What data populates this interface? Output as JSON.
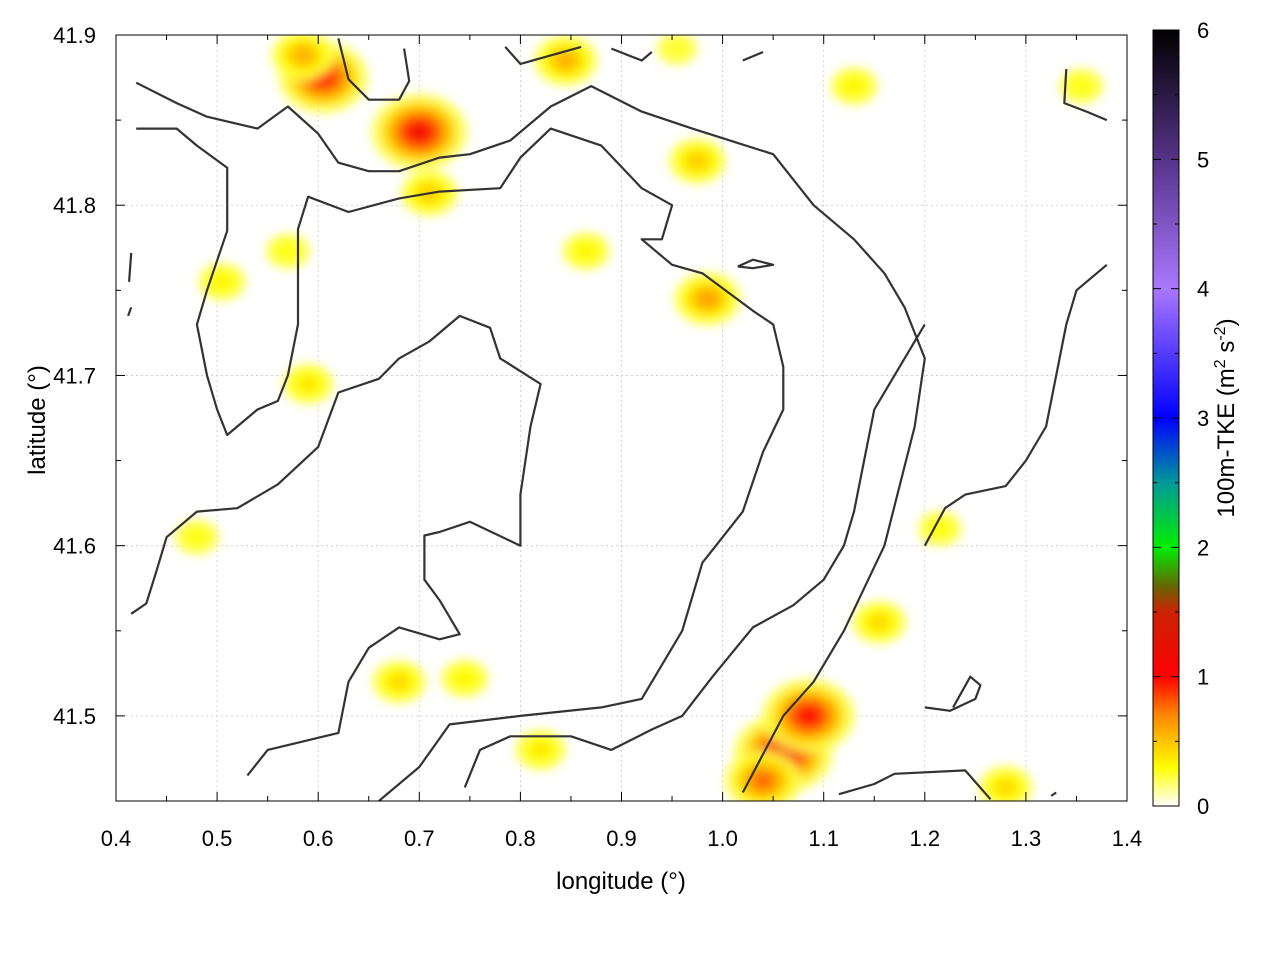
{
  "chart_data": {
    "type": "heatmap",
    "title": "",
    "xlabel": "longitude (°)",
    "ylabel": "latitude (°)",
    "xlim": [
      0.4,
      1.4
    ],
    "ylim": [
      41.45,
      41.9
    ],
    "x_ticks": [
      "0.4",
      "0.5",
      "0.6",
      "0.7",
      "0.8",
      "0.9",
      "1.0",
      "1.1",
      "1.2",
      "1.3",
      "1.4"
    ],
    "y_ticks": [
      "41.5",
      "41.6",
      "41.7",
      "41.8",
      "41.9"
    ],
    "grid": true,
    "colorbar": {
      "label": "100m-TKE (m² s⁻²)",
      "label_main": "100m-TKE (m",
      "label_sup1": "2",
      "label_mid": " s",
      "label_sup2": "-2",
      "label_end": ")",
      "range": [
        0,
        6
      ],
      "ticks": [
        "0",
        "1",
        "2",
        "3",
        "4",
        "5",
        "6"
      ],
      "colormap": [
        [
          0.0,
          "#ffffff"
        ],
        [
          0.3,
          "#ffff00"
        ],
        [
          0.7,
          "#ff8800"
        ],
        [
          1.0,
          "#ff0000"
        ],
        [
          1.5,
          "#cc2200"
        ],
        [
          1.7,
          "#666600"
        ],
        [
          2.0,
          "#00ee00"
        ],
        [
          2.5,
          "#009999"
        ],
        [
          3.0,
          "#0000ff"
        ],
        [
          4.0,
          "#aa77ff"
        ],
        [
          5.0,
          "#553388"
        ],
        [
          6.0,
          "#000000"
        ]
      ]
    },
    "hotspots": [
      {
        "lon": 0.7,
        "lat": 41.843,
        "tke": 1.1
      },
      {
        "lon": 0.605,
        "lat": 41.875,
        "tke": 1.0
      },
      {
        "lon": 0.585,
        "lat": 41.888,
        "tke": 0.6
      },
      {
        "lon": 0.845,
        "lat": 41.885,
        "tke": 0.6
      },
      {
        "lon": 0.71,
        "lat": 41.807,
        "tke": 0.5
      },
      {
        "lon": 0.975,
        "lat": 41.826,
        "tke": 0.5
      },
      {
        "lon": 0.985,
        "lat": 41.745,
        "tke": 0.65
      },
      {
        "lon": 0.59,
        "lat": 41.695,
        "tke": 0.4
      },
      {
        "lon": 0.505,
        "lat": 41.755,
        "tke": 0.35
      },
      {
        "lon": 0.68,
        "lat": 41.52,
        "tke": 0.45
      },
      {
        "lon": 0.745,
        "lat": 41.522,
        "tke": 0.35
      },
      {
        "lon": 0.82,
        "lat": 41.48,
        "tke": 0.4
      },
      {
        "lon": 1.06,
        "lat": 41.478,
        "tke": 1.15
      },
      {
        "lon": 1.085,
        "lat": 41.5,
        "tke": 1.05
      },
      {
        "lon": 1.04,
        "lat": 41.462,
        "tke": 0.8
      },
      {
        "lon": 1.155,
        "lat": 41.555,
        "tke": 0.45
      },
      {
        "lon": 1.28,
        "lat": 41.458,
        "tke": 0.45
      },
      {
        "lon": 0.57,
        "lat": 41.773,
        "tke": 0.3
      },
      {
        "lon": 0.955,
        "lat": 41.892,
        "tke": 0.25
      },
      {
        "lon": 1.13,
        "lat": 41.87,
        "tke": 0.35
      },
      {
        "lon": 1.355,
        "lat": 41.87,
        "tke": 0.3
      },
      {
        "lon": 0.865,
        "lat": 41.773,
        "tke": 0.35
      },
      {
        "lon": 0.48,
        "lat": 41.605,
        "tke": 0.3
      },
      {
        "lon": 1.215,
        "lat": 41.61,
        "tke": 0.3
      }
    ],
    "contours": [
      [
        [
          0.42,
          41.872
        ],
        [
          0.46,
          41.86
        ],
        [
          0.49,
          41.852
        ],
        [
          0.54,
          41.845
        ],
        [
          0.57,
          41.858
        ],
        [
          0.6,
          41.842
        ],
        [
          0.62,
          41.825
        ],
        [
          0.65,
          41.82
        ],
        [
          0.68,
          41.82
        ],
        [
          0.72,
          41.828
        ],
        [
          0.75,
          41.83
        ],
        [
          0.79,
          41.838
        ],
        [
          0.83,
          41.858
        ],
        [
          0.87,
          41.87
        ],
        [
          0.92,
          41.855
        ],
        [
          0.97,
          41.845
        ],
        [
          1.05,
          41.83
        ],
        [
          1.09,
          41.8
        ],
        [
          1.13,
          41.78
        ],
        [
          1.16,
          41.76
        ],
        [
          1.18,
          41.74
        ],
        [
          1.2,
          41.71
        ],
        [
          1.19,
          41.67
        ],
        [
          1.16,
          41.6
        ],
        [
          1.12,
          41.55
        ],
        [
          1.09,
          41.52
        ],
        [
          1.06,
          41.5
        ],
        [
          1.02,
          41.455
        ]
      ],
      [
        [
          0.42,
          41.845
        ],
        [
          0.46,
          41.845
        ],
        [
          0.48,
          41.835
        ],
        [
          0.51,
          41.822
        ],
        [
          0.51,
          41.785
        ],
        [
          0.49,
          41.75
        ],
        [
          0.48,
          41.73
        ],
        [
          0.49,
          41.7
        ],
        [
          0.5,
          41.68
        ],
        [
          0.51,
          41.665
        ],
        [
          0.54,
          41.68
        ],
        [
          0.56,
          41.685
        ],
        [
          0.57,
          41.7
        ],
        [
          0.58,
          41.73
        ],
        [
          0.58,
          41.786
        ],
        [
          0.59,
          41.805
        ],
        [
          0.63,
          41.796
        ],
        [
          0.68,
          41.804
        ],
        [
          0.72,
          41.808
        ],
        [
          0.78,
          41.81
        ],
        [
          0.8,
          41.828
        ],
        [
          0.83,
          41.845
        ],
        [
          0.88,
          41.835
        ],
        [
          0.92,
          41.81
        ],
        [
          0.95,
          41.8
        ],
        [
          0.94,
          41.78
        ],
        [
          0.92,
          41.78
        ],
        [
          0.95,
          41.765
        ],
        [
          0.98,
          41.76
        ],
        [
          1.03,
          41.738
        ],
        [
          1.05,
          41.73
        ],
        [
          1.06,
          41.705
        ],
        [
          1.06,
          41.68
        ],
        [
          1.04,
          41.655
        ],
        [
          1.02,
          41.62
        ],
        [
          1.0,
          41.605
        ],
        [
          0.98,
          41.59
        ],
        [
          0.96,
          41.55
        ],
        [
          0.92,
          41.51
        ],
        [
          0.88,
          41.505
        ],
        [
          0.8,
          41.5
        ],
        [
          0.73,
          41.495
        ],
        [
          0.7,
          41.47
        ],
        [
          0.66,
          41.45
        ]
      ],
      [
        [
          0.415,
          41.56
        ],
        [
          0.43,
          41.566
        ],
        [
          0.44,
          41.585
        ],
        [
          0.45,
          41.605
        ],
        [
          0.48,
          41.62
        ],
        [
          0.52,
          41.622
        ],
        [
          0.56,
          41.636
        ],
        [
          0.6,
          41.658
        ],
        [
          0.62,
          41.69
        ],
        [
          0.66,
          41.698
        ],
        [
          0.68,
          41.71
        ],
        [
          0.71,
          41.72
        ],
        [
          0.74,
          41.735
        ],
        [
          0.77,
          41.728
        ],
        [
          0.78,
          41.71
        ],
        [
          0.82,
          41.695
        ],
        [
          0.81,
          41.67
        ],
        [
          0.8,
          41.63
        ],
        [
          0.8,
          41.6
        ],
        [
          0.75,
          41.614
        ],
        [
          0.72,
          41.608
        ],
        [
          0.705,
          41.606
        ],
        [
          0.705,
          41.58
        ],
        [
          0.72,
          41.568
        ],
        [
          0.74,
          41.548
        ],
        [
          0.72,
          41.545
        ],
        [
          0.68,
          41.552
        ],
        [
          0.65,
          41.54
        ],
        [
          0.63,
          41.52
        ],
        [
          0.62,
          41.49
        ],
        [
          0.55,
          41.48
        ],
        [
          0.53,
          41.465
        ]
      ],
      [
        [
          0.745,
          41.458
        ],
        [
          0.76,
          41.48
        ],
        [
          0.79,
          41.488
        ],
        [
          0.85,
          41.488
        ],
        [
          0.89,
          41.48
        ],
        [
          0.93,
          41.492
        ],
        [
          0.96,
          41.5
        ],
        [
          0.99,
          41.523
        ],
        [
          1.03,
          41.552
        ],
        [
          1.07,
          41.565
        ],
        [
          1.1,
          41.58
        ],
        [
          1.12,
          41.6
        ],
        [
          1.13,
          41.62
        ],
        [
          1.14,
          41.65
        ],
        [
          1.15,
          41.68
        ],
        [
          1.17,
          41.7
        ],
        [
          1.19,
          41.72
        ],
        [
          1.2,
          41.73
        ]
      ],
      [
        [
          1.2,
          41.6
        ],
        [
          1.22,
          41.622
        ],
        [
          1.24,
          41.63
        ],
        [
          1.28,
          41.635
        ],
        [
          1.3,
          41.65
        ],
        [
          1.32,
          41.67
        ],
        [
          1.33,
          41.7
        ],
        [
          1.34,
          41.73
        ],
        [
          1.35,
          41.75
        ],
        [
          1.38,
          41.765
        ]
      ],
      [
        [
          1.115,
          41.454
        ],
        [
          1.15,
          41.46
        ],
        [
          1.17,
          41.466
        ],
        [
          1.24,
          41.468
        ],
        [
          1.265,
          41.451
        ]
      ],
      [
        [
          1.2,
          41.505
        ],
        [
          1.225,
          41.503
        ],
        [
          1.25,
          41.51
        ],
        [
          1.255,
          41.518
        ],
        [
          1.245,
          41.523
        ],
        [
          1.228,
          41.505
        ]
      ],
      [
        [
          1.34,
          41.88
        ],
        [
          1.338,
          41.86
        ],
        [
          1.36,
          41.855
        ],
        [
          1.38,
          41.85
        ]
      ],
      [
        [
          0.62,
          41.898
        ],
        [
          0.63,
          41.874
        ],
        [
          0.65,
          41.862
        ],
        [
          0.68,
          41.862
        ],
        [
          0.69,
          41.873
        ],
        [
          0.685,
          41.892
        ]
      ],
      [
        [
          0.785,
          41.893
        ],
        [
          0.8,
          41.883
        ],
        [
          0.83,
          41.888
        ],
        [
          0.86,
          41.893
        ]
      ],
      [
        [
          0.89,
          41.892
        ],
        [
          0.92,
          41.885
        ],
        [
          0.93,
          41.89
        ]
      ],
      [
        [
          1.02,
          41.885
        ],
        [
          1.04,
          41.89
        ]
      ],
      [
        [
          0.415,
          41.74
        ],
        [
          0.412,
          41.735
        ]
      ],
      [
        [
          0.415,
          41.772
        ],
        [
          0.413,
          41.755
        ]
      ],
      [
        [
          1.015,
          41.764
        ],
        [
          1.03,
          41.763
        ],
        [
          1.05,
          41.765
        ],
        [
          1.03,
          41.768
        ],
        [
          1.015,
          41.764
        ]
      ],
      [
        [
          1.325,
          41.453
        ],
        [
          1.33,
          41.455
        ]
      ]
    ]
  }
}
